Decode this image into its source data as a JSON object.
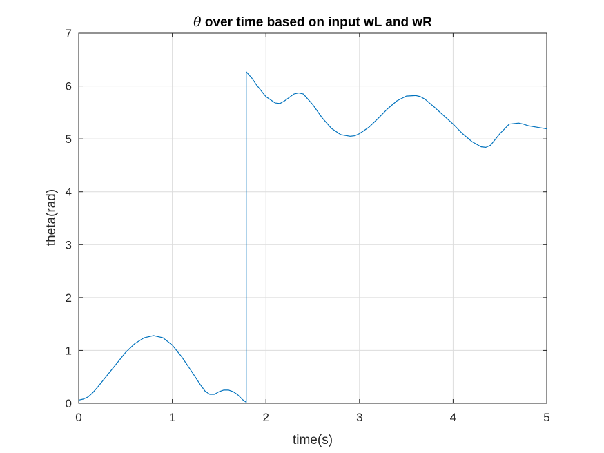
{
  "chart_data": {
    "type": "line",
    "title": {
      "symbol": "θ",
      "text": " over time based on input wL and wR"
    },
    "xlabel": "time(s)",
    "ylabel": "theta(rad)",
    "xlim": [
      0,
      5
    ],
    "ylim": [
      0,
      7
    ],
    "xticks": [
      0,
      1,
      2,
      3,
      4,
      5
    ],
    "yticks": [
      0,
      1,
      2,
      3,
      4,
      5,
      6,
      7
    ],
    "grid": true,
    "box": true,
    "line_color": "#0072BD",
    "series": [
      {
        "x": [
          0,
          0.05,
          0.1,
          0.15,
          0.2,
          0.3,
          0.4,
          0.5,
          0.6,
          0.7,
          0.8,
          0.9,
          1.0,
          1.1,
          1.2,
          1.3,
          1.35,
          1.4,
          1.45,
          1.5,
          1.55,
          1.6,
          1.65,
          1.7,
          1.75,
          1.79,
          1.79,
          1.85,
          1.9,
          2.0,
          2.1,
          2.15,
          2.2,
          2.3,
          2.35,
          2.4,
          2.5,
          2.6,
          2.7,
          2.8,
          2.9,
          2.95,
          3.0,
          3.1,
          3.2,
          3.3,
          3.4,
          3.5,
          3.6,
          3.65,
          3.7,
          3.8,
          3.9,
          4.0,
          4.1,
          4.2,
          4.3,
          4.35,
          4.4,
          4.5,
          4.6,
          4.7,
          4.75,
          4.8,
          4.9,
          5.0
        ],
        "y": [
          0.06,
          0.08,
          0.12,
          0.2,
          0.3,
          0.52,
          0.74,
          0.96,
          1.13,
          1.24,
          1.28,
          1.24,
          1.1,
          0.88,
          0.62,
          0.35,
          0.23,
          0.17,
          0.17,
          0.22,
          0.25,
          0.25,
          0.22,
          0.16,
          0.07,
          0.02,
          6.27,
          6.15,
          6.02,
          5.8,
          5.68,
          5.67,
          5.72,
          5.85,
          5.87,
          5.85,
          5.65,
          5.4,
          5.2,
          5.08,
          5.05,
          5.06,
          5.1,
          5.22,
          5.39,
          5.57,
          5.72,
          5.81,
          5.82,
          5.8,
          5.75,
          5.6,
          5.44,
          5.28,
          5.1,
          4.95,
          4.85,
          4.84,
          4.88,
          5.1,
          5.28,
          5.3,
          5.28,
          5.25,
          5.22,
          5.19
        ]
      }
    ]
  }
}
